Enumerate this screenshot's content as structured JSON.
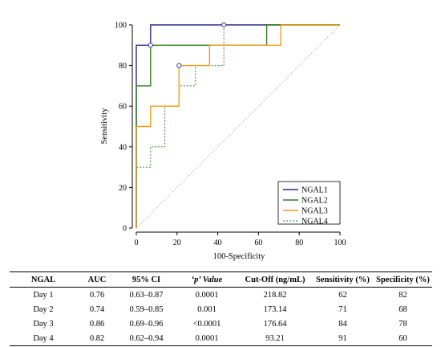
{
  "chart_data": {
    "type": "line",
    "xlabel": "100-Specificity",
    "ylabel": "Sensitivity",
    "xlim": [
      0,
      100
    ],
    "ylim": [
      0,
      100
    ],
    "xticks": [
      "0",
      "20",
      "40",
      "60",
      "80",
      "100"
    ],
    "yticks": [
      "0",
      "20",
      "40",
      "60",
      "80",
      "100"
    ],
    "grid": false,
    "legend_position": "bottom-right",
    "reference_line": {
      "from": [
        0,
        0
      ],
      "to": [
        100,
        100
      ],
      "style": "dotted",
      "color": "#999999"
    },
    "series": [
      {
        "name": "NGAL1",
        "color": "#2b2b8f",
        "dash": "solid",
        "x": [
          0,
          0,
          7,
          7,
          36,
          36,
          100
        ],
        "y": [
          0,
          90,
          90,
          100,
          100,
          100,
          100
        ],
        "marker": {
          "x": 43,
          "y": 100
        }
      },
      {
        "name": "NGAL2",
        "color": "#2e7d1e",
        "dash": "solid",
        "x": [
          0,
          0,
          7,
          7,
          64,
          64,
          100
        ],
        "y": [
          0,
          70,
          70,
          90,
          90,
          100,
          100
        ],
        "marker": {
          "x": 7,
          "y": 90
        }
      },
      {
        "name": "NGAL3",
        "color": "#f39c12",
        "dash": "solid",
        "x": [
          0,
          0,
          7,
          7,
          21,
          21,
          36,
          36,
          71,
          71,
          100
        ],
        "y": [
          0,
          50,
          50,
          60,
          60,
          80,
          80,
          90,
          90,
          100,
          100
        ],
        "marker": {
          "x": 21,
          "y": 80
        }
      },
      {
        "name": "NGAL4",
        "color": "#3a7d3a",
        "dash": "dashed",
        "x": [
          0,
          0,
          7,
          7,
          14,
          14,
          21,
          21,
          29,
          29,
          43,
          43,
          100
        ],
        "y": [
          0,
          30,
          30,
          40,
          40,
          60,
          60,
          70,
          70,
          80,
          80,
          100,
          100
        ],
        "marker": null
      }
    ]
  },
  "table": {
    "headers": {
      "ngal": "NGAL",
      "auc": "AUC",
      "ci": "95% CI",
      "p": "‘p’ Value",
      "cutoff": "Cut-Off (ng/mL)",
      "sens": "Sensitivity (%)",
      "spec": "Specificity (%)"
    },
    "rows": [
      {
        "ngal": "Day 1",
        "auc": "0.76",
        "ci": "0.63–0.87",
        "p": "0.0001",
        "cutoff": "218.82",
        "sens": "62",
        "spec": "82"
      },
      {
        "ngal": "Day 2",
        "auc": "0.74",
        "ci": "0.59–0.85",
        "p": "0.001",
        "cutoff": "173.14",
        "sens": "71",
        "spec": "68"
      },
      {
        "ngal": "Day 3",
        "auc": "0.86",
        "ci": "0.69–0.96",
        "p": "<0.0001",
        "cutoff": "176.64",
        "sens": "84",
        "spec": "78"
      },
      {
        "ngal": "Day 4",
        "auc": "0.82",
        "ci": "0.62–0.94",
        "p": "0.0001",
        "cutoff": "93.21",
        "sens": "91",
        "spec": "60"
      }
    ]
  }
}
